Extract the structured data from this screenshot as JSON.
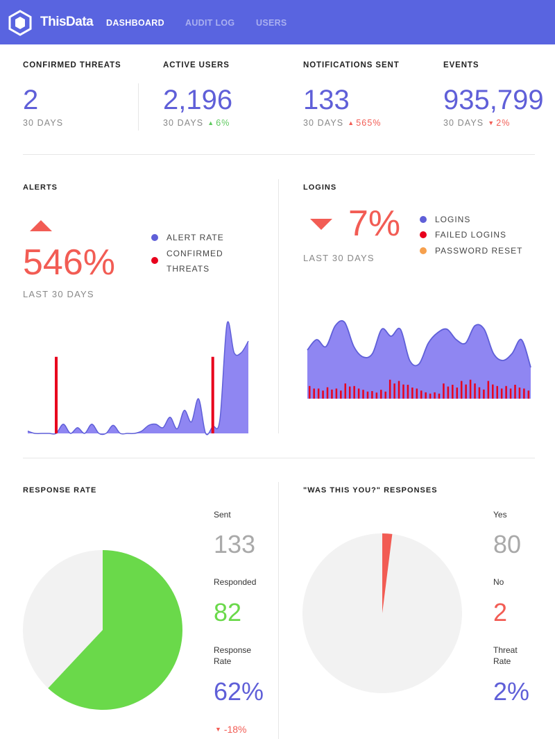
{
  "header": {
    "brand": "ThisData",
    "nav": [
      {
        "label": "DASHBOARD",
        "active": true
      },
      {
        "label": "AUDIT LOG",
        "active": false
      },
      {
        "label": "USERS",
        "active": false
      }
    ],
    "color": "#5964e0"
  },
  "stats": {
    "confirmed_threats": {
      "label": "CONFIRMED THREATS",
      "value": "2",
      "period": "30 DAYS"
    },
    "active_users": {
      "label": "ACTIVE USERS",
      "value": "2,196",
      "period": "30 DAYS",
      "change": "6%",
      "direction": "up",
      "status_color": "#5ec95e"
    },
    "notifications_sent": {
      "label": "NOTIFICATIONS SENT",
      "value": "133",
      "period": "30 DAYS",
      "change": "565%",
      "direction": "up",
      "status_color": "#f25c54"
    },
    "events": {
      "label": "EVENTS",
      "value": "935,799",
      "period": "30 DAYS",
      "change": "2%",
      "direction": "down",
      "status_color": "#f25c54"
    }
  },
  "alerts": {
    "title": "ALERTS",
    "change": "546%",
    "direction": "up",
    "period": "LAST 30 DAYS",
    "legend": {
      "alert_rate": "ALERT RATE",
      "confirmed_threats_line1": "CONFIRMED",
      "confirmed_threats_line2": "THREATS"
    }
  },
  "logins": {
    "title": "LOGINS",
    "change": "7%",
    "direction": "down",
    "period": "LAST 30 DAYS",
    "legend": {
      "logins": "LOGINS",
      "failed_logins": "FAILED LOGINS",
      "password_reset": "PASSWORD RESET"
    }
  },
  "response_rate": {
    "title": "RESPONSE RATE",
    "sent_label": "Sent",
    "sent": "133",
    "responded_label": "Responded",
    "responded": "82",
    "rate_label_line1": "Response",
    "rate_label_line2": "Rate",
    "rate": "62%",
    "rate_change": "-18%",
    "direction": "down"
  },
  "was_this_you": {
    "title": "\"WAS THIS YOU?\" RESPONSES",
    "yes_label": "Yes",
    "yes": "80",
    "no_label": "No",
    "no": "2",
    "threat_label_line1": "Threat",
    "threat_label_line2": "Rate",
    "threat_rate": "2%"
  },
  "colors": {
    "purple": "#5f5fd8",
    "area_fill": "#8f86f2",
    "red": "#f25c54",
    "bar_red": "#e8001c",
    "green": "#6ad94a",
    "orange": "#f6a04d",
    "pie_bg": "#f2f2f2"
  },
  "chart_data": [
    {
      "type": "area",
      "name": "alerts",
      "series": [
        {
          "name": "ALERT RATE",
          "values": [
            2,
            0,
            0,
            0,
            0,
            8,
            0,
            5,
            0,
            8,
            0,
            0,
            7,
            0,
            0,
            0,
            2,
            7,
            8,
            5,
            14,
            4,
            20,
            10,
            30,
            0,
            6,
            12,
            95,
            70,
            70,
            80
          ]
        },
        {
          "name": "CONFIRMED THREATS",
          "values": [
            0,
            0,
            0,
            0,
            63,
            0,
            0,
            0,
            0,
            0,
            0,
            0,
            0,
            0,
            0,
            0,
            0,
            0,
            0,
            0,
            0,
            0,
            0,
            0,
            0,
            0,
            63,
            0,
            0,
            0,
            0,
            0
          ]
        }
      ]
    },
    {
      "type": "area",
      "name": "logins",
      "series": [
        {
          "name": "LOGINS",
          "values": [
            50,
            65,
            55,
            85,
            90,
            55,
            40,
            45,
            80,
            70,
            80,
            35,
            30,
            60,
            75,
            80,
            65,
            60,
            85,
            80,
            45,
            35,
            45,
            65,
            25
          ]
        },
        {
          "name": "FAILED LOGINS",
          "values": [
            10,
            8,
            9,
            8,
            12,
            10,
            7,
            6,
            7,
            15,
            14,
            11,
            8,
            5,
            5,
            12,
            11,
            14,
            15,
            9,
            14,
            10,
            10,
            11,
            8
          ]
        }
      ]
    },
    {
      "type": "pie",
      "name": "response_rate",
      "values": [
        62,
        38
      ]
    },
    {
      "type": "pie",
      "name": "was_this_you",
      "values": [
        2,
        98
      ]
    }
  ]
}
